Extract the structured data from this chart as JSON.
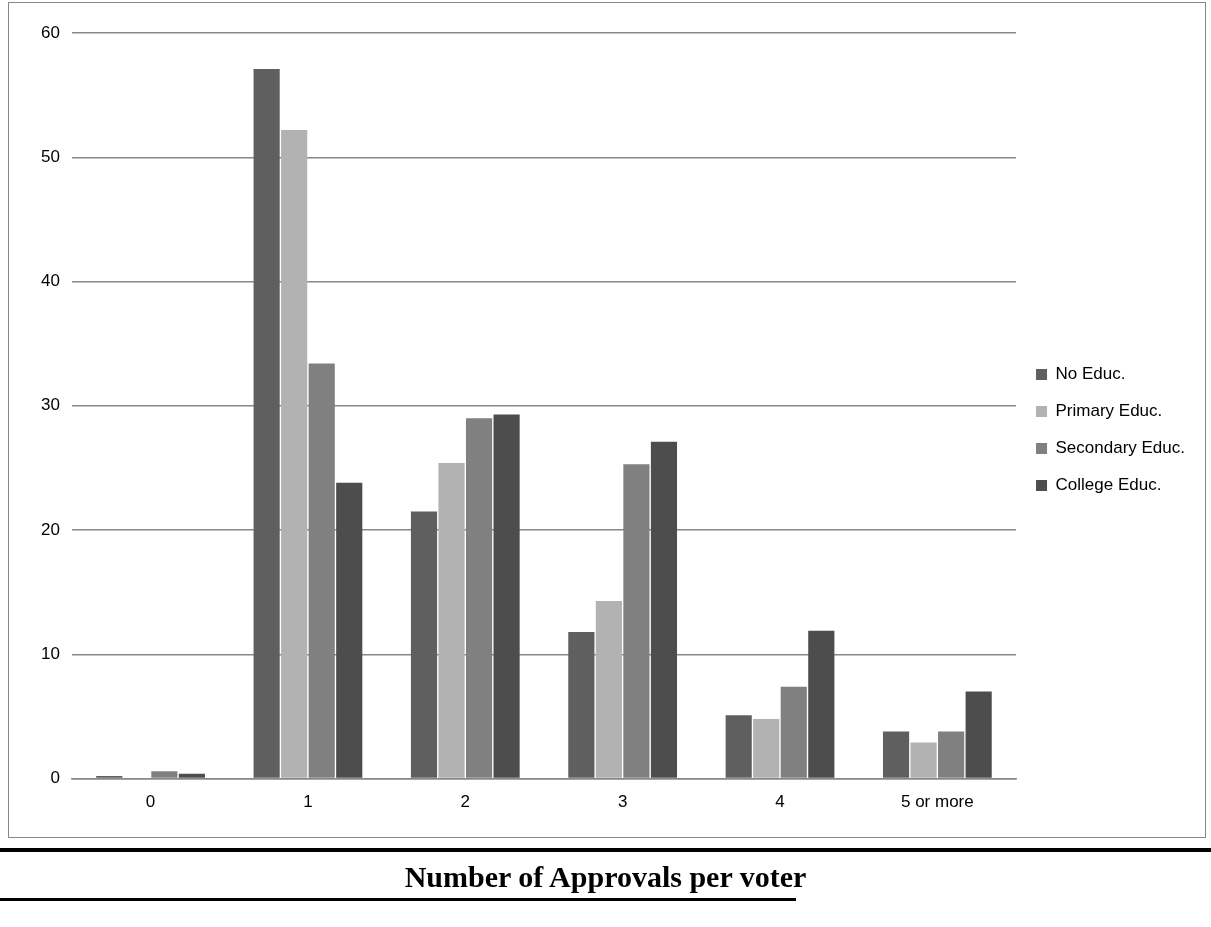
{
  "chart_data": {
    "type": "bar",
    "title": "Number of Approvals per voter",
    "categories": [
      "0",
      "1",
      "2",
      "3",
      "4",
      "5 or more"
    ],
    "series": [
      {
        "name": "No Educ.",
        "color": "#5f5f5f",
        "values": [
          0.2,
          57.1,
          21.5,
          11.8,
          5.1,
          3.8
        ]
      },
      {
        "name": "Primary Educ.",
        "color": "#b2b2b2",
        "values": [
          0,
          52.2,
          25.4,
          14.3,
          4.8,
          2.9
        ]
      },
      {
        "name": "Secondary Educ.",
        "color": "#808080",
        "values": [
          0.6,
          33.4,
          29.0,
          25.3,
          7.4,
          3.8
        ]
      },
      {
        "name": "College Educ.",
        "color": "#4d4d4d",
        "values": [
          0.4,
          23.8,
          29.3,
          27.1,
          11.9,
          7.0
        ]
      }
    ],
    "ylim": [
      0,
      60
    ],
    "yticks": [
      0,
      10,
      20,
      30,
      40,
      50,
      60
    ],
    "grid": "y",
    "legend": "right"
  }
}
